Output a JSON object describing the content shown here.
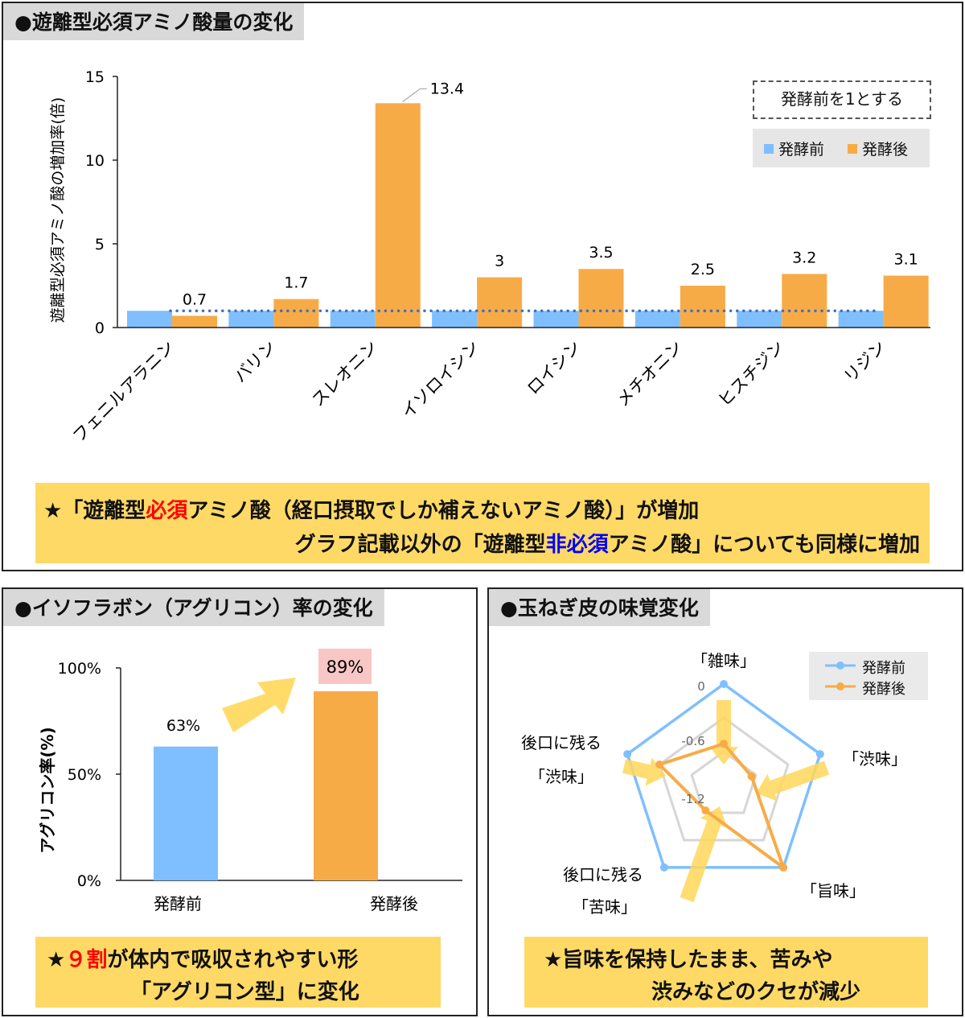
{
  "panel1": {
    "title": "●遊離型必須アミノ酸量の変化",
    "note_box": "発酵前を1とする",
    "note": {
      "line1": {
        "p1": "★「遊離型",
        "red": "必須",
        "p2": "アミノ酸（経口摂取でしか補えないアミノ酸）」が増加"
      },
      "line2": {
        "p1": "グラフ記載以外の「遊離型",
        "blue": "非必須",
        "p2": "アミノ酸」についても同様に増加"
      }
    }
  },
  "panel2": {
    "title": "●イソフラボン（アグリコン）率の変化",
    "note": {
      "line1": {
        "p1": "★",
        "red": "９割",
        "p2": "が体内で吸収されやすい形"
      },
      "line2": "「アグリコン型」に変化"
    }
  },
  "panel3": {
    "title": "●玉ねぎ皮の味覚変化",
    "note": {
      "line1": "★旨味を保持したまま、苦みや",
      "line2": "渋みなどのクセが減少"
    }
  },
  "colors": {
    "before": "#7fbfff",
    "after": "#f7ab47",
    "dots": "#3f6fc0",
    "note_bg": "#ffd966",
    "badge": "#f9c6c6"
  },
  "chart_data": [
    {
      "type": "bar",
      "ylabel": "遊離型必須アミノ酸の増加率(倍)",
      "ylim": [
        0,
        15
      ],
      "yticks": [
        "0",
        "5",
        "10",
        "15"
      ],
      "yticks_values": [
        0,
        5,
        10,
        15
      ],
      "categories": [
        "フェニルアラニン",
        "バリン",
        "スレオニン",
        "イソロイシン",
        "ロイシン",
        "メチオニン",
        "ヒスチジン",
        "リジン"
      ],
      "series": [
        {
          "name": "発酵前",
          "values": [
            1,
            1,
            1,
            1,
            1,
            1,
            1,
            1
          ]
        },
        {
          "name": "発酵後",
          "values": [
            0.7,
            1.7,
            13.4,
            3,
            3.5,
            2.5,
            3.2,
            3.1
          ]
        }
      ],
      "data_labels": [
        "0.7",
        "1.7",
        "13.4",
        "3",
        "3.5",
        "2.5",
        "3.2",
        "3.1"
      ],
      "legend": "top-right"
    },
    {
      "type": "bar",
      "ylabel": "アグリコン率(%)",
      "ylim": [
        0,
        100
      ],
      "yticks": [
        "0%",
        "50%",
        "100%"
      ],
      "yticks_values": [
        0,
        50,
        100
      ],
      "categories": [
        "発酵前",
        "発酵後"
      ],
      "values": [
        63,
        89
      ],
      "data_labels": [
        "63%",
        "89%"
      ]
    },
    {
      "type": "radar",
      "axes": [
        "「雑味」",
        "「渋味」",
        "「旨味」",
        "「苦味」",
        "後口に残る 「渋味」"
      ],
      "axis_labels": {
        "zatsumi": "「雑味」",
        "shibumi": "「渋味」",
        "umami": "「旨味」",
        "nigami_pre": "後口に残る",
        "nigami": "「苦味」",
        "atoshibu_pre": "後口に残る",
        "atoshibu": "「渋味」"
      },
      "rlim": [
        -1.8,
        0
      ],
      "ticks": [
        "0",
        "-0.6",
        "-1.2"
      ],
      "ticks_values": [
        0,
        -0.6,
        -1.2
      ],
      "series": [
        {
          "name": "発酵前",
          "values": [
            0,
            0,
            0,
            0,
            0
          ]
        },
        {
          "name": "発酵後",
          "values": [
            -1.06,
            -1.28,
            0,
            -1.25,
            -0.6
          ]
        }
      ],
      "legend": "top-right"
    }
  ]
}
